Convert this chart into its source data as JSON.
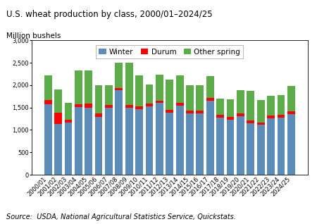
{
  "title": "U.S. wheat production by class, 2000/01–2024/25",
  "ylabel": "Million bushels",
  "source": "Source:  USDA, National Agricultural Statistics Service, Quickstats.",
  "ylim": [
    0,
    3000
  ],
  "yticks": [
    0,
    500,
    1000,
    1500,
    2000,
    2500,
    3000
  ],
  "categories": [
    "2000/01",
    "2001/02",
    "2002/03",
    "2003/04",
    "2004/05",
    "2005/06",
    "2006/07",
    "2007/08",
    "2008/09",
    "2009/10",
    "2010/11",
    "2011/12",
    "2012/13",
    "2013/14",
    "2014/15",
    "2015/16",
    "2016/17",
    "2017/18",
    "2018/19",
    "2019/20",
    "2020/21",
    "2021/22",
    "2022/23",
    "2023/24",
    "2024/25"
  ],
  "winter": [
    1575,
    1140,
    1170,
    1505,
    1500,
    1285,
    1495,
    1880,
    1500,
    1460,
    1520,
    1600,
    1387,
    1540,
    1370,
    1370,
    1655,
    1270,
    1230,
    1300,
    1145,
    1115,
    1265,
    1270,
    1350
  ],
  "durum": [
    85,
    250,
    60,
    70,
    85,
    85,
    60,
    60,
    65,
    60,
    65,
    55,
    55,
    60,
    60,
    55,
    55,
    70,
    65,
    70,
    70,
    55,
    60,
    65,
    60
  ],
  "spring": [
    555,
    510,
    375,
    760,
    750,
    630,
    445,
    555,
    935,
    695,
    425,
    575,
    680,
    610,
    570,
    575,
    490,
    365,
    390,
    510,
    655,
    490,
    440,
    440,
    575
  ],
  "color_winter": "#5B8DB8",
  "color_durum": "#FF0000",
  "color_spring": "#5CAD4A",
  "bar_width": 0.75,
  "title_fontsize": 8.5,
  "tick_fontsize": 6.0,
  "legend_fontsize": 7.5,
  "ylabel_fontsize": 7.5,
  "source_fontsize": 7.0
}
